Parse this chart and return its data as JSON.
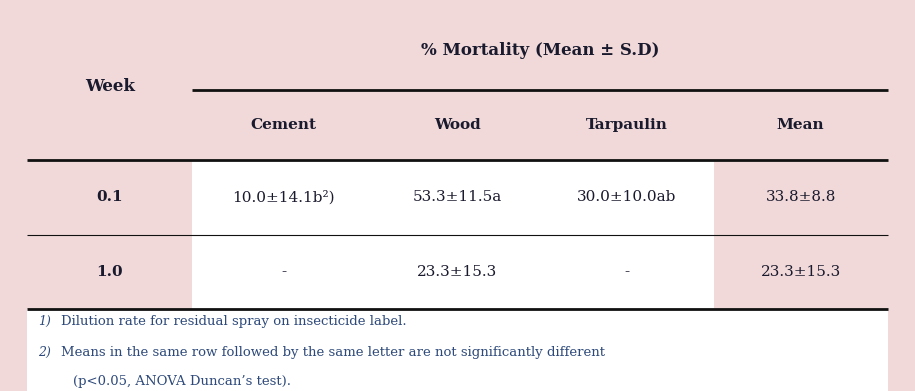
{
  "bg_color": "#f2d9d9",
  "white_color": "#ffffff",
  "text_color": "#1a1a2e",
  "footnote_color": "#2e4a7a",
  "col_header_row": "% Mortality (Mean ± S.D)",
  "sub_headers": [
    "Cement",
    "Wood",
    "Tarpaulin",
    "Mean"
  ],
  "week_label": "Week",
  "rows": [
    {
      "week": "0.1",
      "cement": "10.0±14.1b²)",
      "wood": "53.3±11.5a",
      "tarpaulin": "30.0±10.0ab",
      "mean": "33.8±8.8"
    },
    {
      "week": "1.0",
      "cement": "-",
      "wood": "23.3±15.3",
      "tarpaulin": "-",
      "mean": "23.3±15.3"
    }
  ],
  "footnote1": "1)Dilution rate for residual spray on insecticide label.",
  "footnote2": "2)Means in the same row followed by the same letter are not significantly different",
  "footnote3": "   (p<0.05, ANOVA Duncan’s test)."
}
